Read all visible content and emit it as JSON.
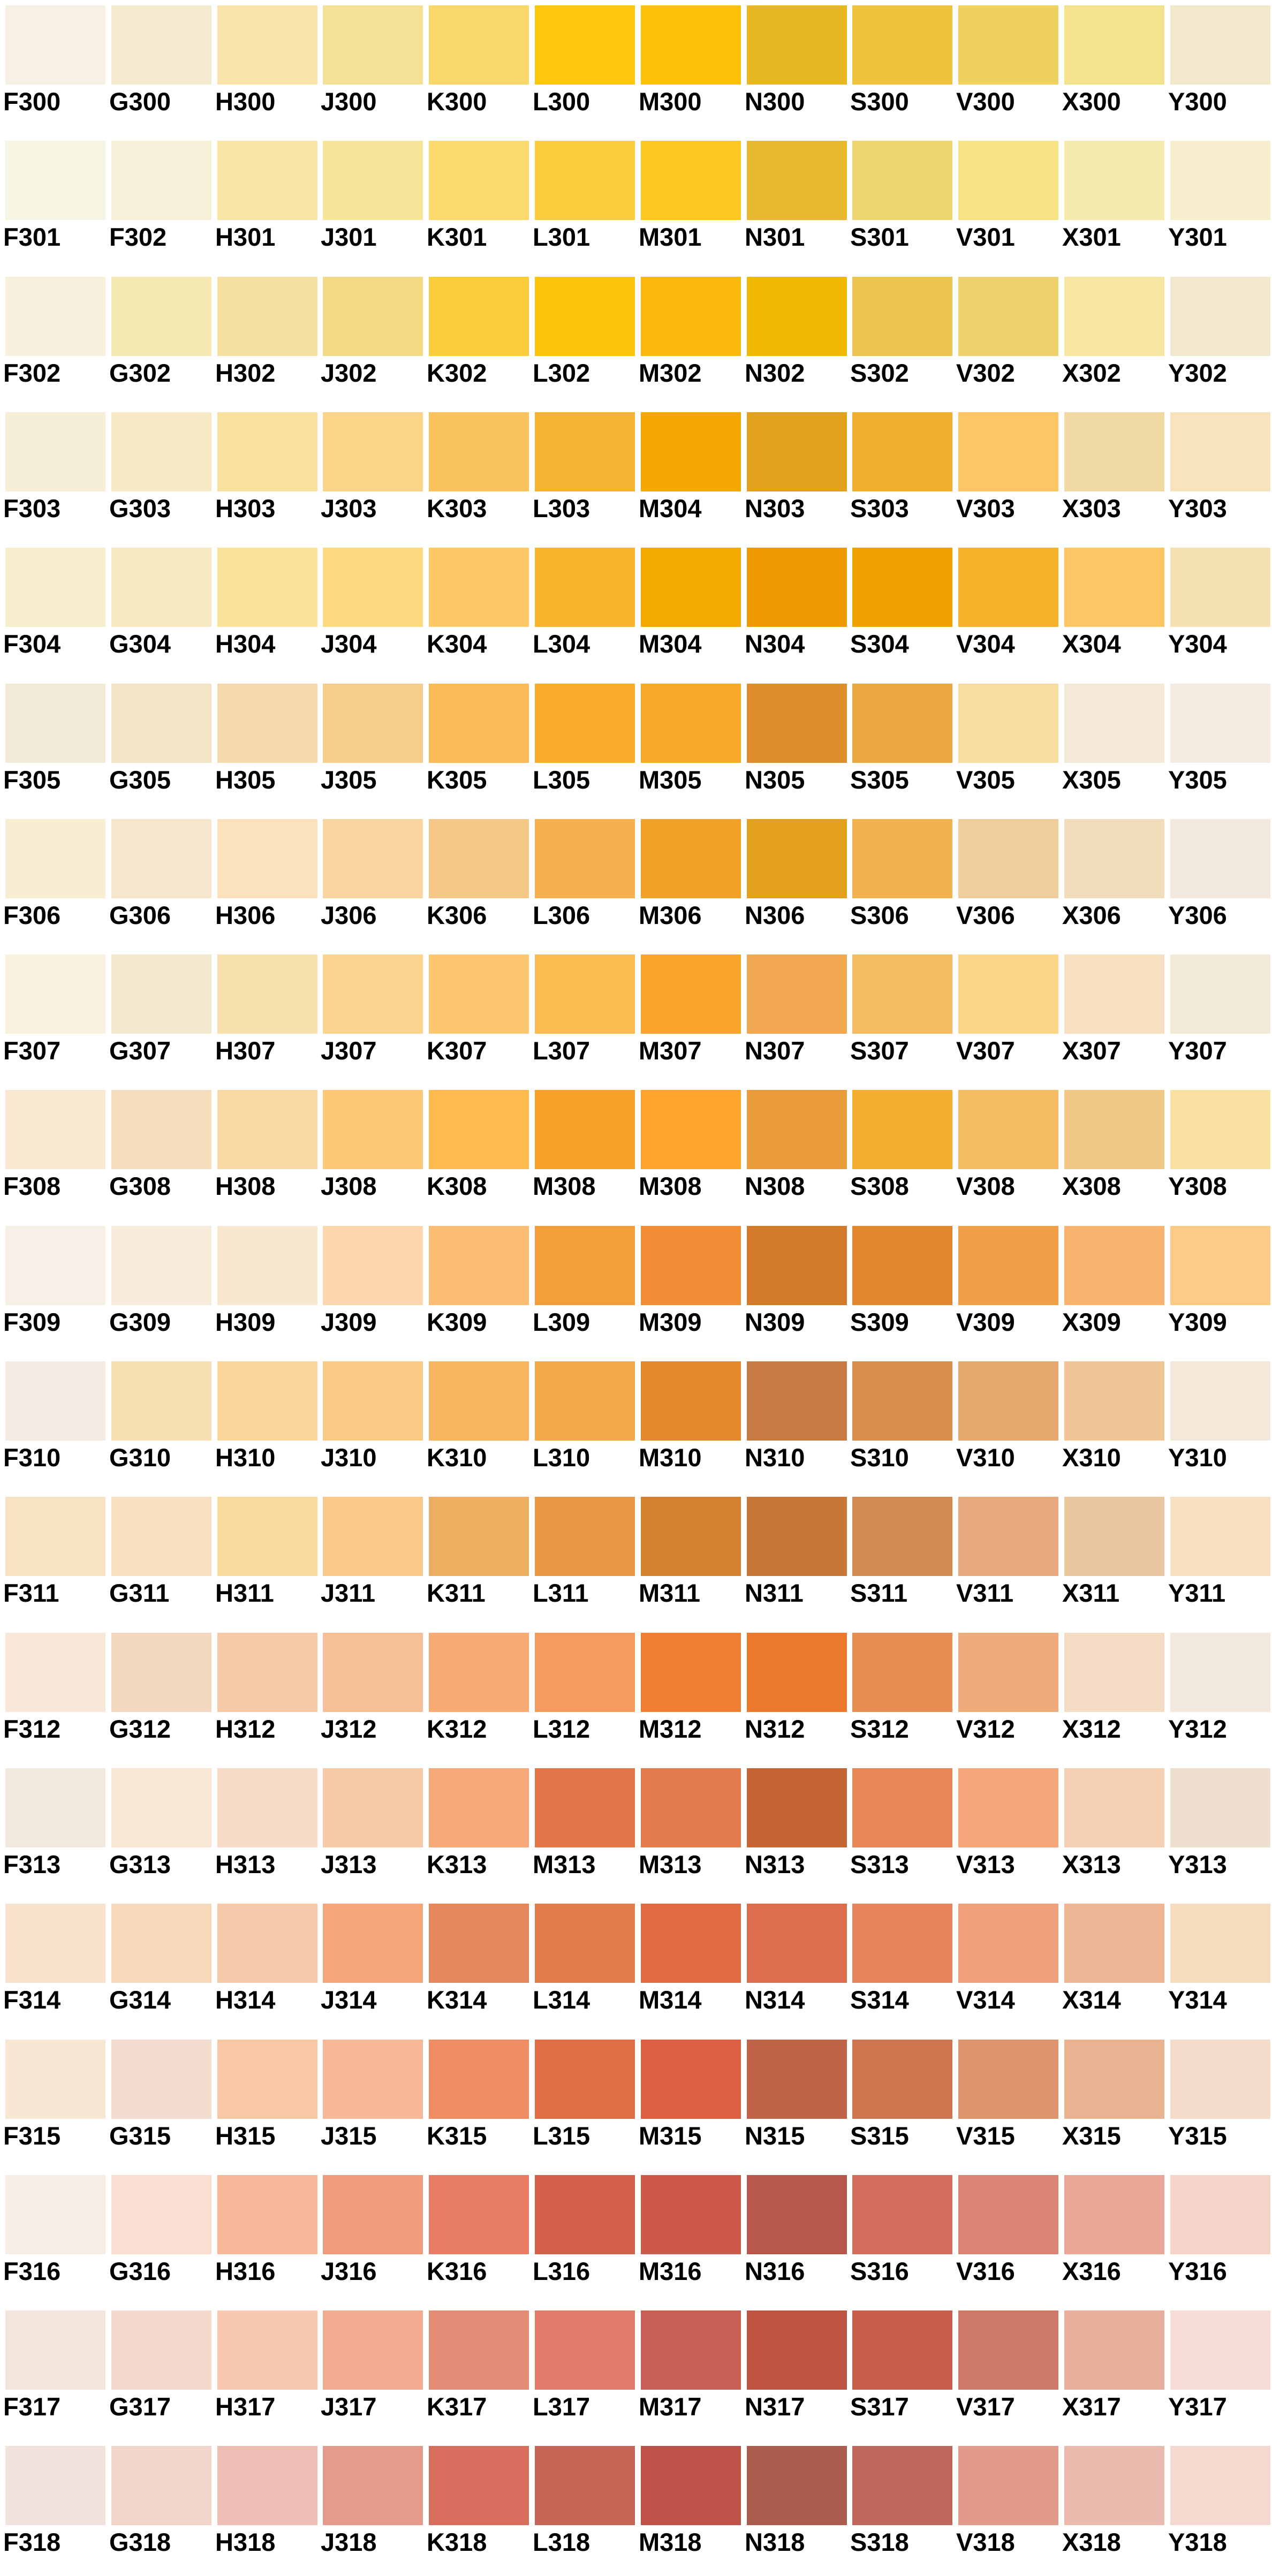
{
  "swatch_rows": [
    {
      "codes": [
        "F300",
        "G300",
        "H300",
        "J300",
        "K300",
        "L300",
        "M300",
        "N300",
        "S300",
        "V300",
        "X300",
        "Y300"
      ],
      "colors": [
        "#f7f1e3",
        "#f5ebd0",
        "#f8e3a8",
        "#f5e196",
        "#f9d768",
        "#fdc80c",
        "#fdc10a",
        "#e8b822",
        "#eec43f",
        "#efd160",
        "#f3e38e",
        "#f2e9cc"
      ]
    },
    {
      "codes": [
        "F301",
        "F302",
        "H301",
        "J301",
        "K301",
        "L301",
        "M301",
        "N301",
        "S301",
        "V301",
        "X301",
        "Y301"
      ],
      "colors": [
        "#f7f4e3",
        "#f7f0d8",
        "#f7e5a8",
        "#f6e499",
        "#fcd96c",
        "#fdcb3e",
        "#fec621",
        "#e8b82d",
        "#efd572",
        "#f6e383",
        "#f6ebad",
        "#f7eece"
      ]
    },
    {
      "codes": [
        "F302",
        "G302",
        "H302",
        "J302",
        "K302",
        "L302",
        "M302",
        "N302",
        "S302",
        "V302",
        "X302",
        "Y302"
      ],
      "colors": [
        "#f6f0dc",
        "#f6e8b2",
        "#f6e0a1",
        "#f4d985",
        "#fccd3b",
        "#fdc50a",
        "#f9b80b",
        "#f0b800",
        "#ecc550",
        "#efd26c",
        "#f7e69f",
        "#f2e8d0"
      ]
    },
    {
      "codes": [
        "F303",
        "G303",
        "H303",
        "J303",
        "K303",
        "L303",
        "M304",
        "N303",
        "S303",
        "V303",
        "X303",
        "Y303"
      ],
      "colors": [
        "#f6eed6",
        "#f5e9c6",
        "#f8e19e",
        "#fbd589",
        "#fbc35e",
        "#f4b431",
        "#f4a700",
        "#e2a21b",
        "#efae2d",
        "#fcc664",
        "#f0d9a3",
        "#f7e3bd"
      ]
    },
    {
      "codes": [
        "F304",
        "G304",
        "H304",
        "J304",
        "K304",
        "L304",
        "M304",
        "N304",
        "S304",
        "V304",
        "X304",
        "Y304"
      ],
      "colors": [
        "#f7eccc",
        "#f7e9c2",
        "#f9e39c",
        "#fdd87e",
        "#fdc865",
        "#f6b52b",
        "#f4a900",
        "#ed9a00",
        "#efa200",
        "#f5b229",
        "#fdc664",
        "#f3e1b2"
      ]
    },
    {
      "codes": [
        "F305",
        "G305",
        "H305",
        "J305",
        "K305",
        "L305",
        "M305",
        "N305",
        "S305",
        "V305",
        "X305",
        "Y305"
      ],
      "colors": [
        "#f3ead8",
        "#f4e4c6",
        "#f4d9aa",
        "#f6cd8a",
        "#fdbb58",
        "#fcac2d",
        "#faa828",
        "#df8e2c",
        "#eba841",
        "#f8dda2",
        "#f4e8d6",
        "#f3ebdf"
      ]
    },
    {
      "codes": [
        "F306",
        "G306",
        "H306",
        "J306",
        "K306",
        "L306",
        "M306",
        "N306",
        "S306",
        "V306",
        "X306",
        "Y306"
      ],
      "colors": [
        "#f8ecd3",
        "#f6e7cc",
        "#fbe2bd",
        "#f8d4a0",
        "#f5c789",
        "#f6b04f",
        "#f2a027",
        "#e3a01b",
        "#f1b350",
        "#efcd9c",
        "#f1dcbb",
        "#f2e8dc"
      ]
    },
    {
      "codes": [
        "F307",
        "G307",
        "H307",
        "J307",
        "K307",
        "L307",
        "M307",
        "N307",
        "S307",
        "V307",
        "X307",
        "Y307"
      ],
      "colors": [
        "#f7f1df",
        "#f4e9cf",
        "#f7dfae",
        "#fbd38f",
        "#fdc771",
        "#fbbb51",
        "#f9a42a",
        "#f0a750",
        "#f5bb63",
        "#fdd587",
        "#f6e0c1",
        "#f3eada"
      ]
    },
    {
      "codes": [
        "F308",
        "G308",
        "H308",
        "J308",
        "K308",
        "M308",
        "M308",
        "N308",
        "S308",
        "V308",
        "X308",
        "Y308"
      ],
      "colors": [
        "#f8e7d1",
        "#f5dfbe",
        "#fad9a4",
        "#fdc878",
        "#feba4c",
        "#f9a22b",
        "#fca42d",
        "#eb9c3a",
        "#f4ad2d",
        "#f3bd61",
        "#f0c986",
        "#f8e1a1"
      ]
    },
    {
      "codes": [
        "F309",
        "G309",
        "H309",
        "J309",
        "K309",
        "L309",
        "M309",
        "N309",
        "S309",
        "V309",
        "X309",
        "Y309"
      ],
      "colors": [
        "#f7f0e6",
        "#f6ead9",
        "#f7e7d0",
        "#fcd7ae",
        "#fcbc74",
        "#f49d3b",
        "#f08d35",
        "#d47a2b",
        "#e2872e",
        "#f09f46",
        "#f8b36e",
        "#fccb86"
      ]
    },
    {
      "codes": [
        "F310",
        "G310",
        "H310",
        "J310",
        "K310",
        "L310",
        "M310",
        "N310",
        "S310",
        "V310",
        "X310",
        "Y310"
      ],
      "colors": [
        "#f2ebe1",
        "#f8dfb1",
        "#f8d69c",
        "#f9c986",
        "#f6b55e",
        "#f4a948",
        "#e4882c",
        "#c67c43",
        "#d98e4c",
        "#e4a86f",
        "#f0c595",
        "#f3e8da"
      ]
    },
    {
      "codes": [
        "F311",
        "G311",
        "H311",
        "J311",
        "K311",
        "L311",
        "M311",
        "N311",
        "S311",
        "V311",
        "X311",
        "Y311"
      ],
      "colors": [
        "#f6e3c3",
        "#f6e0c1",
        "#fbdb9d",
        "#f8c98a",
        "#edae61",
        "#e99943",
        "#d4822f",
        "#c97639",
        "#d38a52",
        "#e6aa7c",
        "#ebc7a1",
        "#f7e0c2"
      ]
    },
    {
      "codes": [
        "F312",
        "G312",
        "H312",
        "J312",
        "K312",
        "L312",
        "M312",
        "N312",
        "S312",
        "V312",
        "X312",
        "Y312"
      ],
      "colors": [
        "#f8e7d7",
        "#f3d8c0",
        "#f7cbaa",
        "#f8c098",
        "#f7aa73",
        "#f69b5f",
        "#ef7f33",
        "#ec7a2d",
        "#e68d54",
        "#efab7b",
        "#f3dbc4",
        "#f2e8dc"
      ]
    },
    {
      "codes": [
        "F313",
        "G313",
        "H313",
        "J313",
        "K313",
        "M313",
        "M313",
        "N313",
        "S313",
        "V313",
        "X313",
        "Y313"
      ],
      "colors": [
        "#f2e9df",
        "#f8e7d5",
        "#f8dbc6",
        "#f7c9a8",
        "#f8a97a",
        "#e37648",
        "#e47b4c",
        "#c66534",
        "#e78658",
        "#f2a679",
        "#f6d0b4",
        "#efdfd0"
      ]
    },
    {
      "codes": [
        "F314",
        "G314",
        "H314",
        "J314",
        "K314",
        "L314",
        "M314",
        "N314",
        "S314",
        "V314",
        "X314",
        "Y314"
      ],
      "colors": [
        "#f7e3cd",
        "#f6d9ba",
        "#f5c9aa",
        "#f5a57a",
        "#e5875a",
        "#e27d4c",
        "#e06a42",
        "#dd6e4d",
        "#e6845c",
        "#eda079",
        "#efb695",
        "#f7dbbe"
      ]
    },
    {
      "codes": [
        "F315",
        "G315",
        "H315",
        "J315",
        "K315",
        "L315",
        "M315",
        "N315",
        "S315",
        "V315",
        "X315",
        "Y315"
      ],
      "colors": [
        "#f7e6d2",
        "#f3ddce",
        "#f8c7a5",
        "#f6b794",
        "#ef8c62",
        "#e06d46",
        "#dd6042",
        "#c06449",
        "#ce7550",
        "#de946a",
        "#e9b391",
        "#f4dccb"
      ]
    },
    {
      "codes": [
        "F316",
        "G316",
        "H316",
        "J316",
        "K316",
        "L316",
        "M316",
        "N316",
        "S316",
        "V316",
        "X316",
        "Y316"
      ],
      "colors": [
        "#f7ece7",
        "#f9ded1",
        "#f7b799",
        "#ef9c7e",
        "#e97c64",
        "#d55f4b",
        "#cd594b",
        "#b6584c",
        "#d46e5c",
        "#da8474",
        "#eaa797",
        "#f4d4c8"
      ]
    },
    {
      "codes": [
        "F317",
        "G317",
        "H317",
        "J317",
        "K317",
        "L317",
        "M317",
        "N317",
        "S317",
        "V317",
        "X317",
        "Y317"
      ],
      "colors": [
        "#f3e5dc",
        "#f2d9cb",
        "#f8c8b1",
        "#f0ab92",
        "#e38d76",
        "#e07b6a",
        "#c75f54",
        "#bd5542",
        "#c75d4a",
        "#cd7968",
        "#e8ae9c",
        "#f5ddd5"
      ]
    },
    {
      "codes": [
        "F318",
        "G318",
        "H318",
        "J318",
        "K318",
        "L318",
        "M318",
        "N318",
        "S318",
        "V318",
        "X318",
        "Y318"
      ],
      "colors": [
        "#f1e2dd",
        "#f2d5ca",
        "#eebdb3",
        "#e49b8d",
        "#d76e5e",
        "#c66456",
        "#bf5248",
        "#ac5c4c",
        "#bd685b",
        "#e29a89",
        "#ebbaae",
        "#f4d9d1"
      ]
    }
  ]
}
